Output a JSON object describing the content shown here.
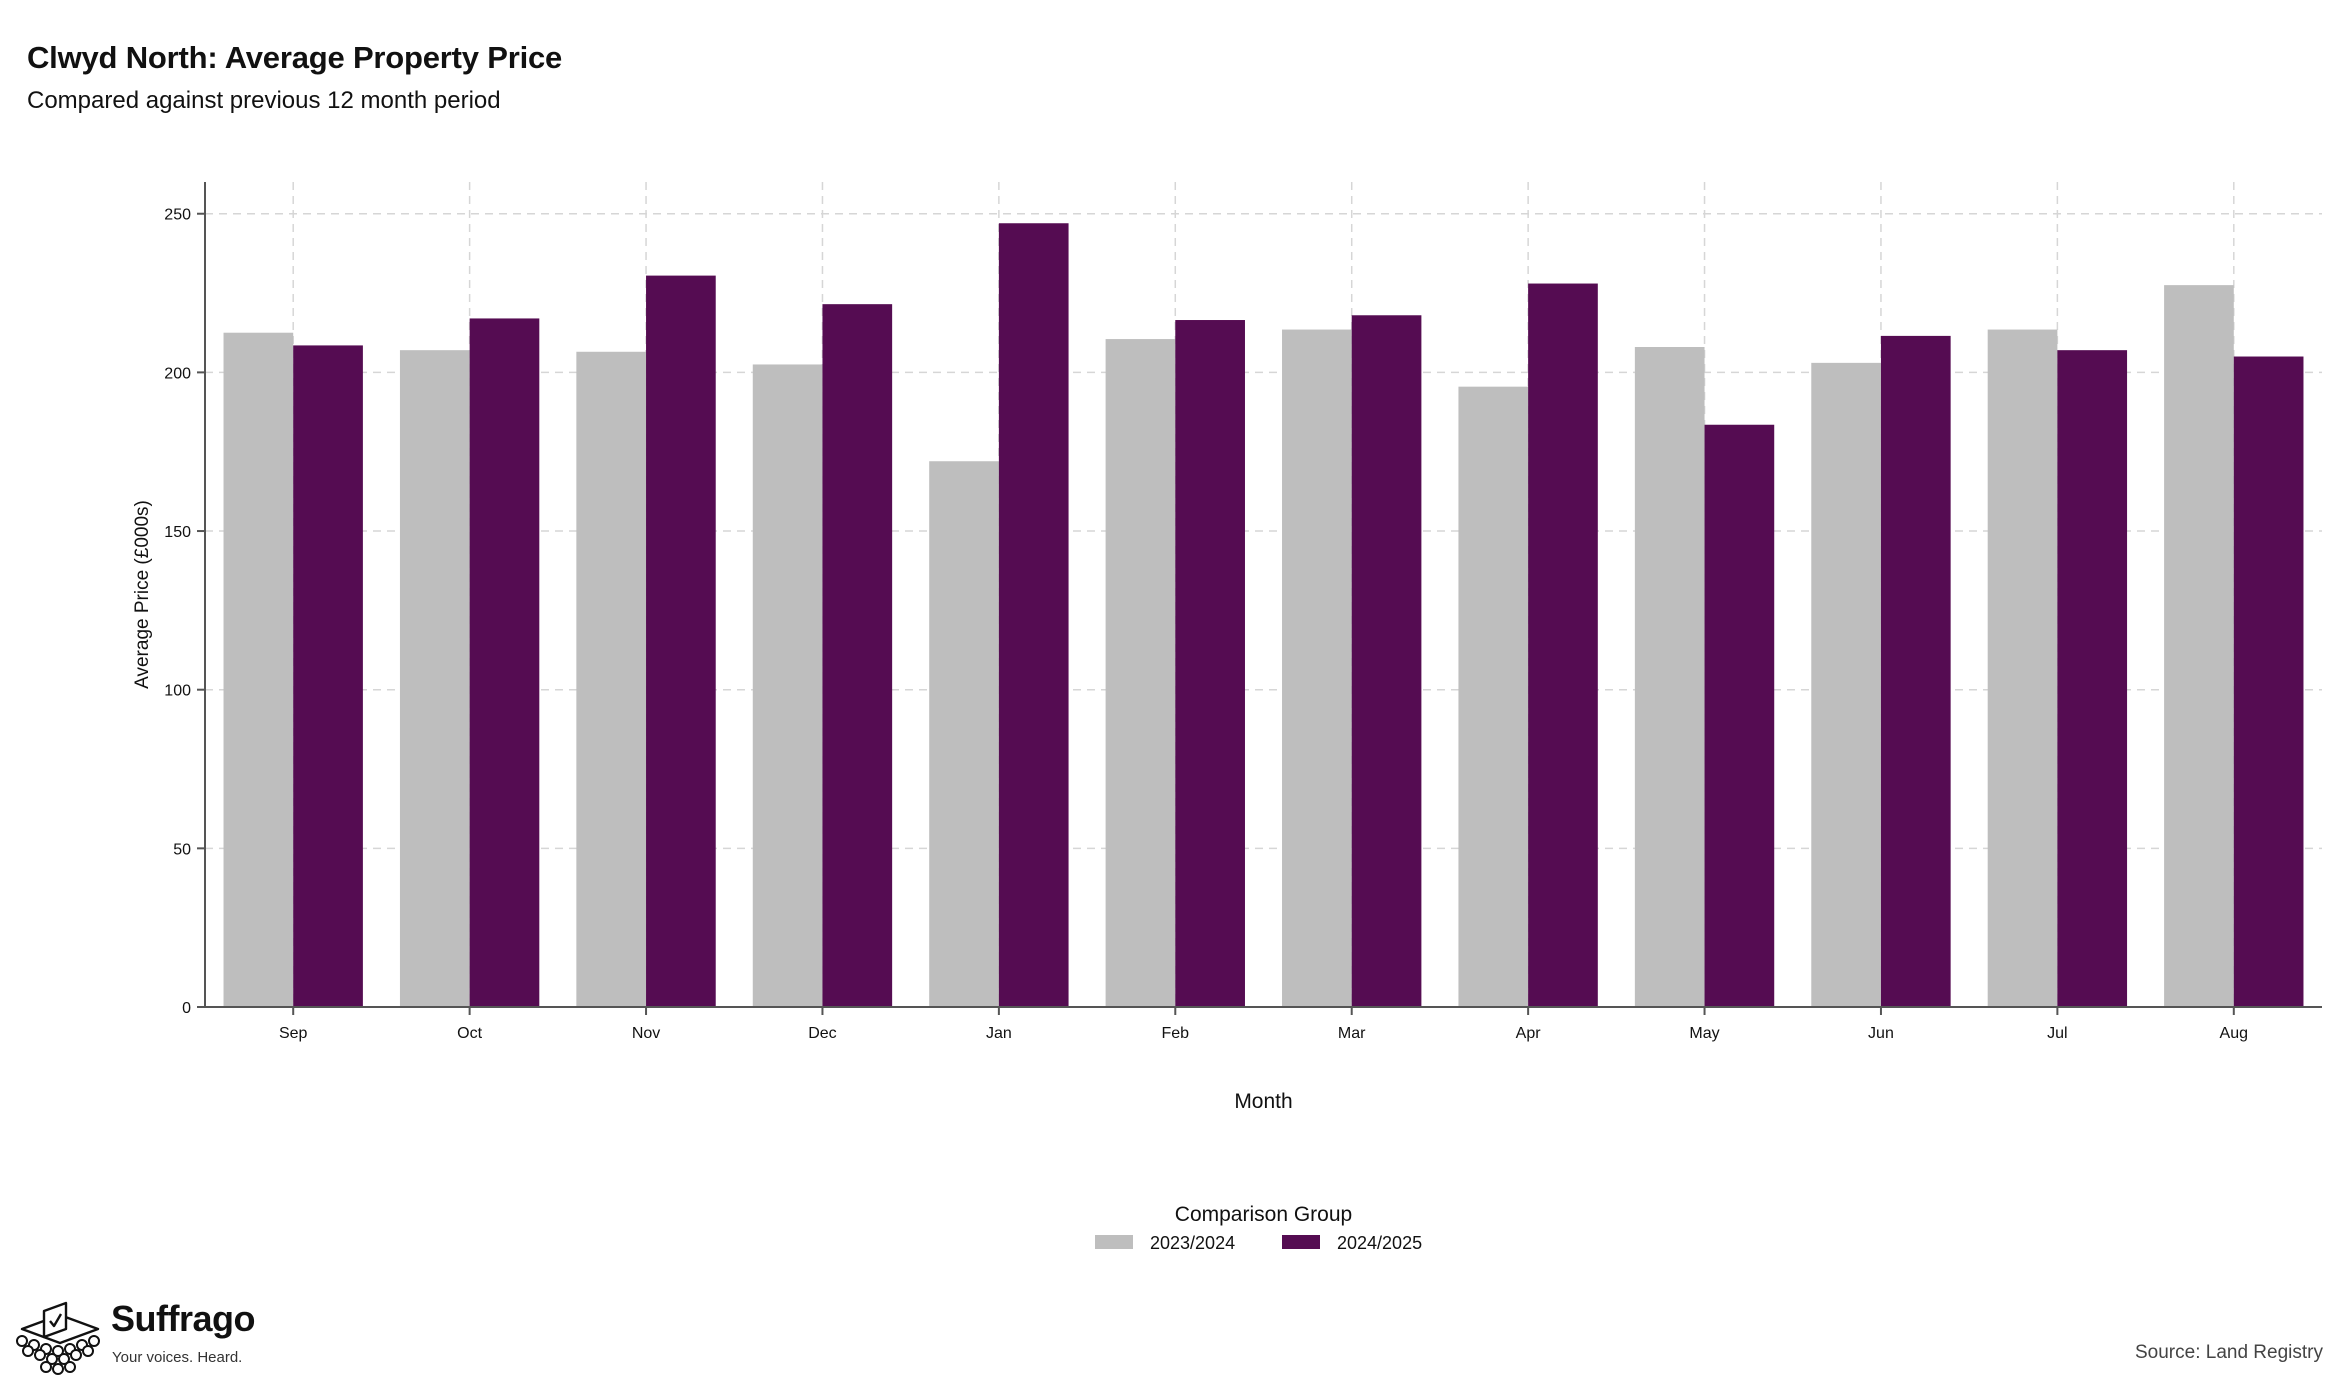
{
  "header": {
    "title": "Clwyd North: Average Property Price",
    "subtitle": "Compared against previous 12 month period"
  },
  "branding": {
    "name": "Suffrago",
    "tagline": "Your voices. Heard."
  },
  "footer": {
    "source": "Source: Land Registry"
  },
  "chart_data": {
    "type": "bar",
    "title": "Clwyd North: Average Property Price",
    "subtitle": "Compared against previous 12 month period",
    "xlabel": "Month",
    "ylabel": "Average Price (£000s)",
    "ylim": [
      0,
      260
    ],
    "yticks": [
      0,
      50,
      100,
      150,
      200,
      250
    ],
    "grid": true,
    "categories": [
      "Sep",
      "Oct",
      "Nov",
      "Dec",
      "Jan",
      "Feb",
      "Mar",
      "Apr",
      "May",
      "Jun",
      "Jul",
      "Aug"
    ],
    "legend": {
      "title": "Comparison Group",
      "placement": "bottom-center"
    },
    "series": [
      {
        "name": "2023/2024",
        "color": "#bebebe",
        "values": [
          212.5,
          207,
          206.5,
          202.5,
          172,
          210.5,
          213.5,
          195.5,
          208,
          203,
          213.5,
          227.5
        ]
      },
      {
        "name": "2024/2025",
        "color": "#550c52",
        "values": [
          208.5,
          217,
          230.5,
          221.5,
          247,
          216.5,
          218,
          228,
          183.5,
          211.5,
          207,
          205
        ]
      }
    ]
  }
}
